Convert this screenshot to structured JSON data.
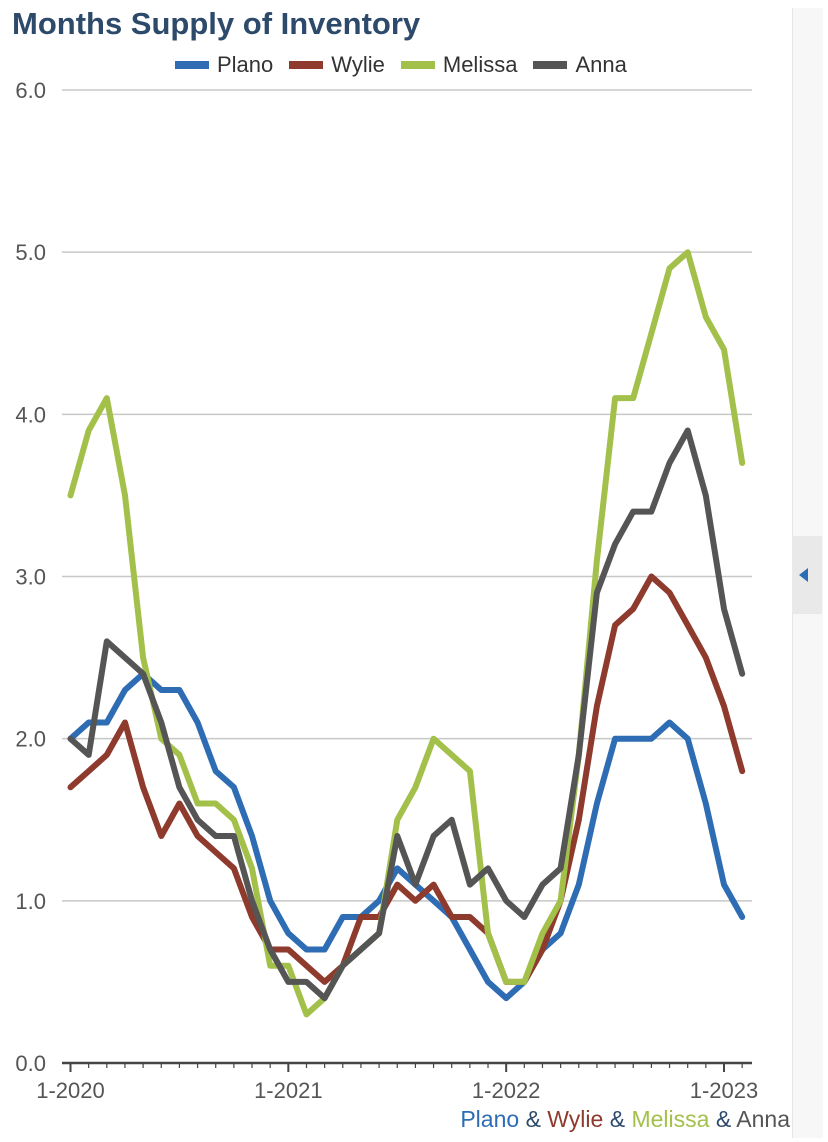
{
  "title": "Months Supply of Inventory",
  "legend": [
    {
      "label": "Plano",
      "color": "#2e6db4"
    },
    {
      "label": "Wylie",
      "color": "#8e3a2d"
    },
    {
      "label": "Melissa",
      "color": "#a3c14a"
    },
    {
      "label": "Anna",
      "color": "#555555"
    }
  ],
  "footer": {
    "parts": [
      "Plano",
      "Wylie",
      "Melissa",
      "Anna"
    ],
    "separator": "&"
  },
  "chart_data": {
    "type": "line",
    "title": "Months Supply of Inventory",
    "xlabel": "",
    "ylabel": "",
    "ylim": [
      0,
      6
    ],
    "yticks": [
      "0.0",
      "1.0",
      "2.0",
      "3.0",
      "4.0",
      "5.0",
      "6.0"
    ],
    "xticks": [
      "1-2020",
      "1-2021",
      "1-2022",
      "1-2023"
    ],
    "grid": true,
    "legend_position": "top",
    "x": [
      "1-2020",
      "2-2020",
      "3-2020",
      "4-2020",
      "5-2020",
      "6-2020",
      "7-2020",
      "8-2020",
      "9-2020",
      "10-2020",
      "11-2020",
      "12-2020",
      "1-2021",
      "2-2021",
      "3-2021",
      "4-2021",
      "5-2021",
      "6-2021",
      "7-2021",
      "8-2021",
      "9-2021",
      "10-2021",
      "11-2021",
      "12-2021",
      "1-2022",
      "2-2022",
      "3-2022",
      "4-2022",
      "5-2022",
      "6-2022",
      "7-2022",
      "8-2022",
      "9-2022",
      "10-2022",
      "11-2022",
      "12-2022",
      "1-2023",
      "2-2023"
    ],
    "series": [
      {
        "name": "Plano",
        "color": "#2e6db4",
        "values": [
          2.0,
          2.1,
          2.1,
          2.3,
          2.4,
          2.3,
          2.3,
          2.1,
          1.8,
          1.7,
          1.4,
          1.0,
          0.8,
          0.7,
          0.7,
          0.9,
          0.9,
          1.0,
          1.2,
          1.1,
          1.0,
          0.9,
          0.7,
          0.5,
          0.4,
          0.5,
          0.7,
          0.8,
          1.1,
          1.6,
          2.0,
          2.0,
          2.0,
          2.1,
          2.0,
          1.6,
          1.1,
          0.9
        ]
      },
      {
        "name": "Wylie",
        "color": "#8e3a2d",
        "values": [
          1.7,
          1.8,
          1.9,
          2.1,
          1.7,
          1.4,
          1.6,
          1.4,
          1.3,
          1.2,
          0.9,
          0.7,
          0.7,
          0.6,
          0.5,
          0.6,
          0.9,
          0.9,
          1.1,
          1.0,
          1.1,
          0.9,
          0.9,
          0.8,
          0.5,
          0.5,
          0.7,
          1.0,
          1.5,
          2.2,
          2.7,
          2.8,
          3.0,
          2.9,
          2.7,
          2.5,
          2.2,
          1.8
        ]
      },
      {
        "name": "Melissa",
        "color": "#a3c14a",
        "values": [
          3.5,
          3.9,
          4.1,
          3.5,
          2.5,
          2.0,
          1.9,
          1.6,
          1.6,
          1.5,
          1.2,
          0.6,
          0.6,
          0.3,
          0.4,
          0.6,
          0.7,
          0.8,
          1.5,
          1.7,
          2.0,
          1.9,
          1.8,
          0.8,
          0.5,
          0.5,
          0.8,
          1.0,
          1.9,
          3.1,
          4.1,
          4.1,
          4.5,
          4.9,
          5.0,
          4.6,
          4.4,
          3.7
        ]
      },
      {
        "name": "Anna",
        "color": "#555555",
        "values": [
          2.0,
          1.9,
          2.6,
          2.5,
          2.4,
          2.1,
          1.7,
          1.5,
          1.4,
          1.4,
          1.0,
          0.7,
          0.5,
          0.5,
          0.4,
          0.6,
          0.7,
          0.8,
          1.4,
          1.1,
          1.4,
          1.5,
          1.1,
          1.2,
          1.0,
          0.9,
          1.1,
          1.2,
          1.9,
          2.9,
          3.2,
          3.4,
          3.4,
          3.7,
          3.9,
          3.5,
          2.8,
          2.4
        ]
      }
    ]
  }
}
